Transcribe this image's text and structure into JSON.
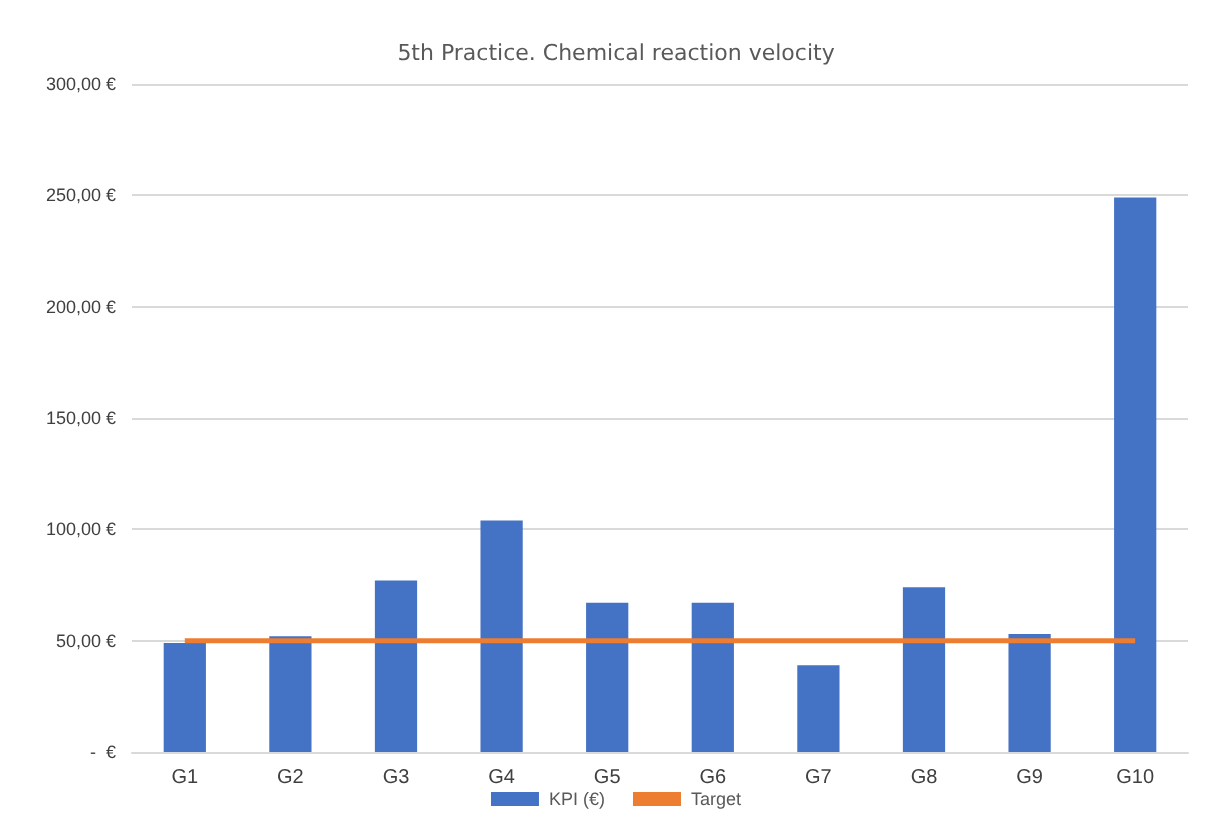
{
  "chart_data": {
    "type": "bar",
    "title": "5th Practice. Chemical reaction velocity",
    "categories": [
      "G1",
      "G2",
      "G3",
      "G4",
      "G5",
      "G6",
      "G7",
      "G8",
      "G9",
      "G10"
    ],
    "series": [
      {
        "name": "KPI (€)",
        "color": "#4472c4",
        "values": [
          49,
          52,
          77,
          104,
          67,
          67,
          39,
          74,
          53,
          249
        ]
      },
      {
        "name": "Target",
        "type": "line",
        "color": "#ed7d31",
        "values": [
          50,
          50,
          50,
          50,
          50,
          50,
          50,
          50,
          50,
          50
        ]
      }
    ],
    "ylim": [
      0,
      300
    ],
    "yticks": [
      {
        "value": 0,
        "label": "-  €"
      },
      {
        "value": 50,
        "label": "50,00 €"
      },
      {
        "value": 100,
        "label": "100,00 €"
      },
      {
        "value": 150,
        "label": "150,00 €"
      },
      {
        "value": 200,
        "label": "200,00 €"
      },
      {
        "value": 250,
        "label": "250,00 €"
      },
      {
        "value": 300,
        "label": "300,00 €"
      }
    ],
    "grid": "y",
    "legend": "bottom",
    "marker": "none"
  }
}
